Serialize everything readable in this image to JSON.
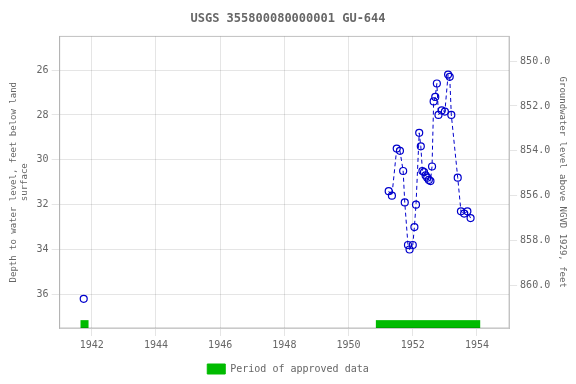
{
  "chart_data": {
    "type": "line",
    "title": "USGS 355800080000001 GU-644",
    "ylabel": "Depth to water level, feet below land\nsurface",
    "y2label": "Groundwater level above NGVD 1929, feet",
    "xlim": [
      1941.0,
      1955.0
    ],
    "xticks": [
      1942,
      1944,
      1946,
      1948,
      1950,
      1952,
      1954
    ],
    "ylim": [
      37.5,
      24.5
    ],
    "yticks": [
      26,
      28,
      30,
      32,
      34,
      36
    ],
    "y2lim": [
      861.9,
      848.9
    ],
    "y2ticks": [
      {
        "value": 860,
        "label": "860.0"
      },
      {
        "value": 858,
        "label": "858.0"
      },
      {
        "value": 856,
        "label": "856.0"
      },
      {
        "value": 854,
        "label": "854.0"
      },
      {
        "value": 852,
        "label": "852.0"
      },
      {
        "value": 850,
        "label": "850.0"
      }
    ],
    "grid": true,
    "legend": "bottom",
    "marker": "open_circle",
    "line_style": "dashed",
    "series": [
      {
        "color": "#0000cc",
        "x": [
          1941.75
        ],
        "values": [
          36.2
        ]
      },
      {
        "color": "#0000cc",
        "x": [
          1951.25,
          1951.35,
          1951.5,
          1951.6,
          1951.7,
          1951.75,
          1951.85,
          1951.9,
          1952.0,
          1952.05,
          1952.1,
          1952.2,
          1952.25,
          1952.3,
          1952.35,
          1952.4,
          1952.45,
          1952.5,
          1952.55,
          1952.6,
          1952.65,
          1952.7,
          1952.75,
          1952.8,
          1952.9,
          1953.0,
          1953.1,
          1953.15,
          1953.2,
          1953.4,
          1953.5,
          1953.6,
          1953.7,
          1953.8
        ],
        "values": [
          31.4,
          31.6,
          29.5,
          29.6,
          30.5,
          31.9,
          33.8,
          34.0,
          33.8,
          33.0,
          32.0,
          28.8,
          29.4,
          30.5,
          30.55,
          30.7,
          30.8,
          30.9,
          30.95,
          30.3,
          27.4,
          27.2,
          26.6,
          28.0,
          27.8,
          27.85,
          26.2,
          26.3,
          28.0,
          30.8,
          32.3,
          32.4,
          32.3,
          32.6
        ]
      }
    ],
    "approved_periods": {
      "name": "Period of approved data",
      "color": "#00bb00",
      "ranges": [
        [
          1941.65,
          1941.9
        ],
        [
          1950.85,
          1954.1
        ]
      ],
      "y": 37.15,
      "height": 0.35
    }
  }
}
